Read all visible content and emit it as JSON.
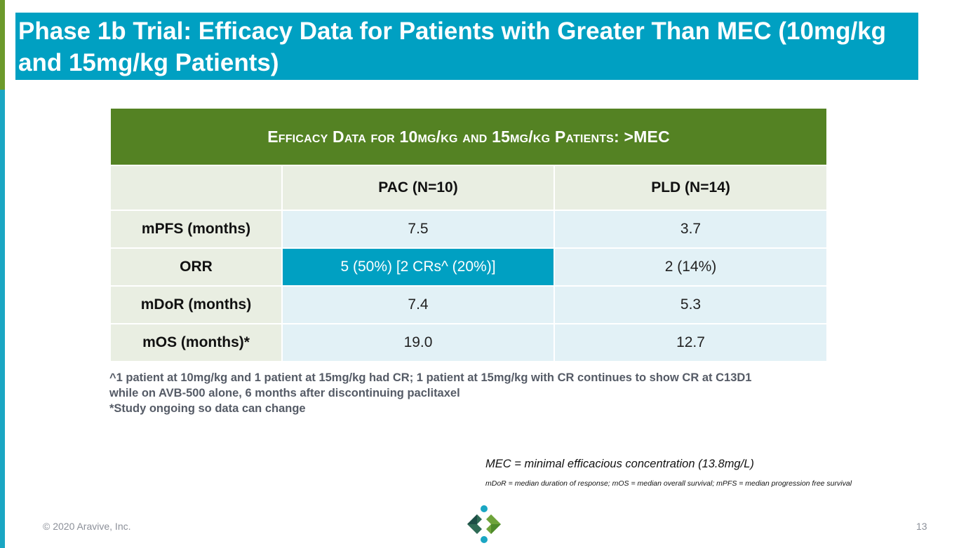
{
  "slide": {
    "title": "Phase 1b Trial: Efficacy Data for Patients with Greater Than MEC (10mg/kg and 15mg/kg Patients)",
    "copyright": "© 2020 Aravive, Inc.",
    "page_number": "13"
  },
  "table": {
    "header": "Efficacy Data for 10mg/kg and 15mg/kg Patients: >MEC",
    "columns": [
      "",
      "PAC (N=10)",
      "PLD (N=14)"
    ],
    "rows": [
      {
        "label": "mPFS (months)",
        "pac": "7.5",
        "pld": "3.7"
      },
      {
        "label": "ORR",
        "pac": "5 (50%) [2 CRs^ (20%)]",
        "pld": "2 (14%)"
      },
      {
        "label": "mDoR (months)",
        "pac": "7.4",
        "pld": "5.3"
      },
      {
        "label": "mOS (months)*",
        "pac": "19.0",
        "pld": "12.7"
      }
    ]
  },
  "notes": {
    "line1": "^1 patient at 10mg/kg and 1 patient at 15mg/kg had CR; 1 patient at 15mg/kg with CR continues to show CR at C13D1",
    "line2": "while on AVB-500 alone, 6 months after discontinuing paclitaxel",
    "line3": "*Study ongoing so data can change"
  },
  "definitions": {
    "mec": "MEC = minimal efficacious concentration (13.8mg/L)",
    "abbreviations": "mDoR = median duration of response; mOS = median overall survival;  mPFS = median progression free survival"
  },
  "colors": {
    "title_band": "#00a0c2",
    "table_header": "#548223",
    "label_cells": "#e9eee2",
    "value_cells": "#e2f1f6",
    "highlight_cell": "#00a0c2"
  },
  "logo": {
    "icon": "aravive-logo-icon"
  }
}
